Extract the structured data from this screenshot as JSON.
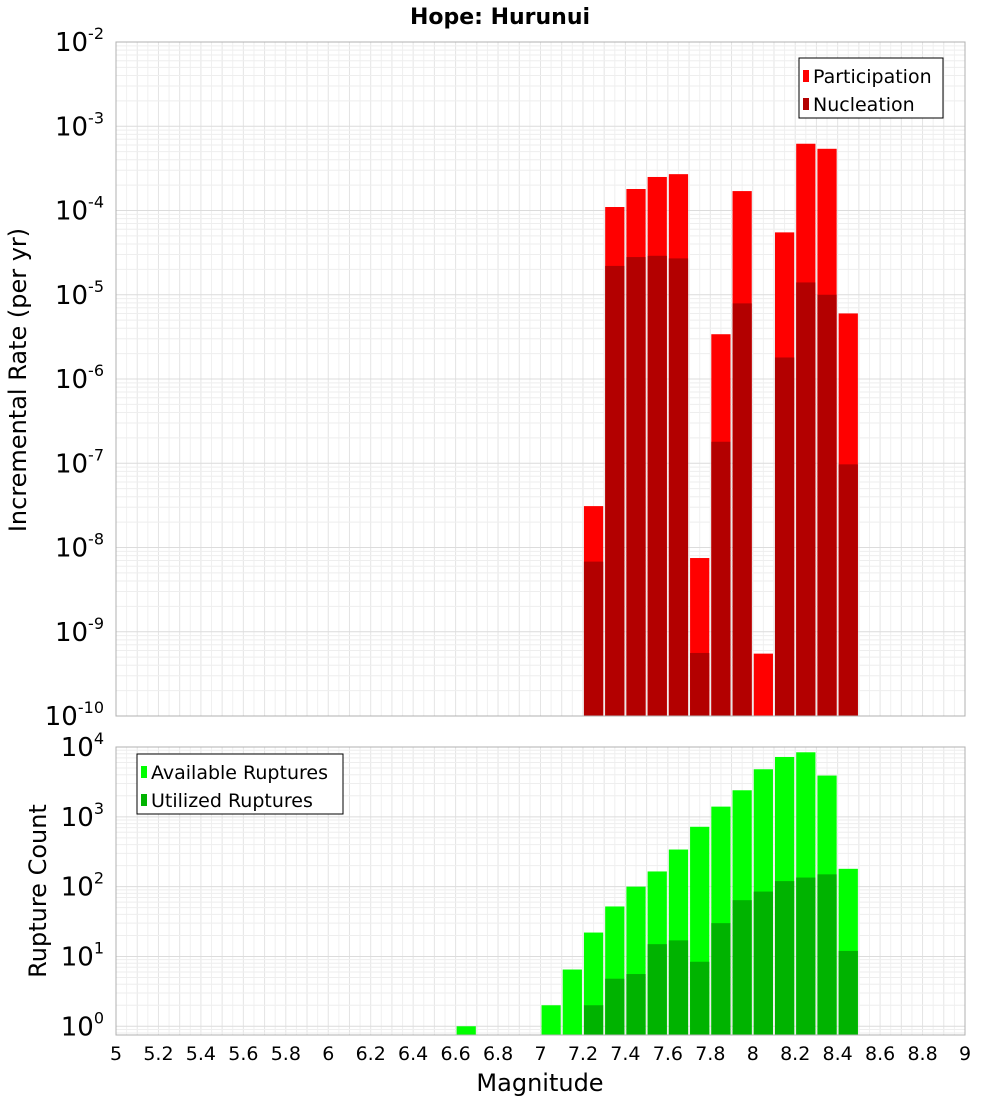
{
  "chart_data": [
    {
      "type": "bar",
      "panel": "top",
      "title": "Hope: Hurunui",
      "ylabel": "Incremental Rate (per yr)",
      "yscale": "log",
      "ylim": [
        1e-10,
        0.01
      ],
      "xlim": [
        5,
        9
      ],
      "y_ticks": [
        {
          "base": "10",
          "exp": "-10",
          "value": 1e-10
        },
        {
          "base": "10",
          "exp": "-9",
          "value": 1e-09
        },
        {
          "base": "10",
          "exp": "-8",
          "value": 1e-08
        },
        {
          "base": "10",
          "exp": "-7",
          "value": 1e-07
        },
        {
          "base": "10",
          "exp": "-6",
          "value": 1e-06
        },
        {
          "base": "10",
          "exp": "-5",
          "value": 1e-05
        },
        {
          "base": "10",
          "exp": "-4",
          "value": 0.0001
        },
        {
          "base": "10",
          "exp": "-3",
          "value": 0.001
        },
        {
          "base": "10",
          "exp": "-2",
          "value": 0.01
        }
      ],
      "legend": {
        "position": "top-right"
      },
      "grid": true,
      "x": [
        7.25,
        7.35,
        7.45,
        7.55,
        7.65,
        7.75,
        7.85,
        7.95,
        8.05,
        8.15,
        8.25,
        8.35,
        8.45
      ],
      "series": [
        {
          "name": "Participation",
          "color": "#ff0000",
          "values": [
            3.1e-08,
            0.00011,
            0.00018,
            0.00025,
            0.00027,
            7.5e-09,
            3.4e-06,
            0.00017,
            5.5e-10,
            5.5e-05,
            0.00062,
            0.00054,
            6e-06
          ]
        },
        {
          "name": "Nucleation",
          "color": "#b30000",
          "values": [
            6.8e-09,
            2.2e-05,
            2.8e-05,
            2.9e-05,
            2.7e-05,
            5.6e-10,
            1.8e-07,
            7.9e-06,
            null,
            1.8e-06,
            1.4e-05,
            1e-05,
            9.7e-08
          ]
        }
      ]
    },
    {
      "type": "bar",
      "panel": "bottom",
      "xlabel": "Magnitude",
      "ylabel": "Rupture Count",
      "yscale": "log",
      "ylim": [
        0.75,
        10000
      ],
      "xlim": [
        5,
        9
      ],
      "x_ticks": [
        "5",
        "5.2",
        "5.4",
        "5.6",
        "5.8",
        "6",
        "6.2",
        "6.4",
        "6.6",
        "6.8",
        "7",
        "7.2",
        "7.4",
        "7.6",
        "7.8",
        "8",
        "8.2",
        "8.4",
        "8.6",
        "8.8",
        "9"
      ],
      "y_ticks": [
        {
          "base": "10",
          "exp": "0",
          "value": 1
        },
        {
          "base": "10",
          "exp": "1",
          "value": 10
        },
        {
          "base": "10",
          "exp": "2",
          "value": 100
        },
        {
          "base": "10",
          "exp": "3",
          "value": 1000
        },
        {
          "base": "10",
          "exp": "4",
          "value": 10000
        }
      ],
      "legend": {
        "position": "top-left"
      },
      "grid": true,
      "x": [
        6.65,
        7.05,
        7.15,
        7.25,
        7.35,
        7.45,
        7.55,
        7.65,
        7.75,
        7.85,
        7.95,
        8.05,
        8.15,
        8.25,
        8.35,
        8.45
      ],
      "series": [
        {
          "name": "Available Ruptures",
          "color": "#00ff00",
          "values": [
            1,
            2,
            6.5,
            22,
            52,
            100,
            165,
            340,
            720,
            1400,
            2400,
            4800,
            7200,
            8400,
            3900,
            180
          ]
        },
        {
          "name": "Utilized Ruptures",
          "color": "#00b300",
          "values": [
            null,
            null,
            null,
            2,
            4.8,
            5.6,
            15,
            17,
            8.4,
            30,
            64,
            85,
            120,
            135,
            150,
            12
          ]
        }
      ]
    }
  ]
}
